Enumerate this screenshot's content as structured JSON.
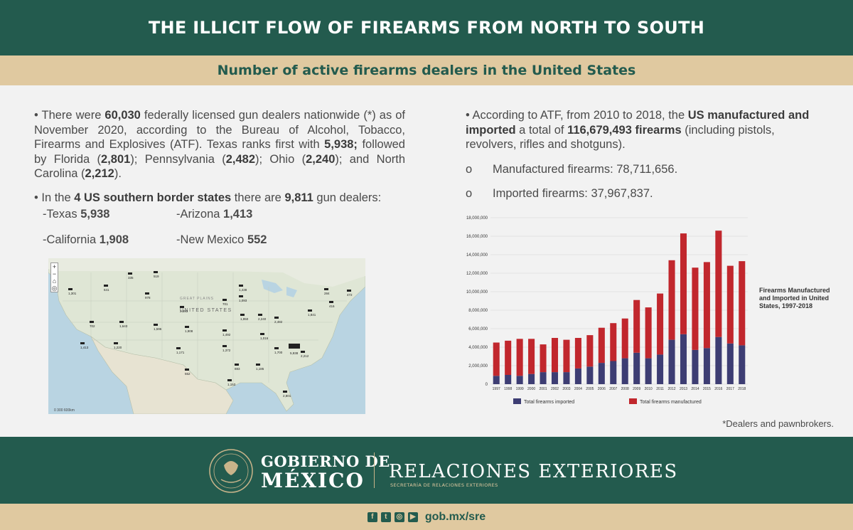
{
  "header": {
    "title": "THE ILLICIT FLOW OF FIREARMS FROM NORTH TO SOUTH",
    "subtitle": "Number of active firearms dealers in the United States"
  },
  "left": {
    "para1_a": "• There were ",
    "para1_b": "60,030",
    "para1_c": " federally licensed gun dealers nationwide (*) as of November 2020, according to the Bureau of Alcohol, Tobacco, Firearms and Explosives (ATF). Texas ranks first with ",
    "para1_d": "5,938;",
    "para1_e": " followed by Florida (",
    "para1_f": "2,801",
    "para1_g": "); Pennsylvania (",
    "para1_h": "2,482",
    "para1_i": "); Ohio (",
    "para1_j": "2,240",
    "para1_k": "); and North Carolina (",
    "para1_l": "2,212",
    "para1_m": ").",
    "para2_a": "• In the ",
    "para2_b": "4 US southern border states",
    "para2_c": " there are ",
    "para2_d": "9,811",
    "para2_e": " gun dealers:",
    "states": [
      {
        "name": "-Texas ",
        "value": "5,938"
      },
      {
        "name": "-Arizona ",
        "value": "1,413"
      },
      {
        "name": "-California ",
        "value": "1,908"
      },
      {
        "name": "-New Mexico ",
        "value": "552"
      }
    ]
  },
  "map": {
    "labels": [
      "UNITED STATES",
      "GREAT PLAINS"
    ],
    "counts": [
      "1,301",
      "641",
      "519",
      "335",
      "978",
      "1,438",
      "1,093",
      "284",
      "472",
      "416",
      "702",
      "1,643",
      "1,596",
      "701",
      "2,893",
      "1,492",
      "1,950",
      "2,240",
      "2,482",
      "1,841",
      "1,908",
      "1,413",
      "1,220",
      "1,171",
      "1,372",
      "1,016",
      "1,700",
      "5,938",
      "552",
      "883",
      "1,185",
      "2,212",
      "1,153",
      "2,801"
    ],
    "scale": "0   300   600km"
  },
  "right": {
    "para1_a": "• According to ATF, from 2010 to 2018, the ",
    "para1_b": "US manufactured and imported",
    "para1_c": " a total of ",
    "para1_d": "116,679,493 firearms",
    "para1_e": " (including pistols, revolvers, rifles and shotguns).",
    "bullet_marker": "o",
    "bullet1": "Manufactured firearms: 78,711,656.",
    "bullet2": "Imported firearms: 37,967,837."
  },
  "chart_data": {
    "type": "bar",
    "stacked": true,
    "title": "Firearms Manufactured and Imported in United States, 1997-2018",
    "categories": [
      "1997",
      "1998",
      "1999",
      "2000",
      "2001",
      "2002",
      "2003",
      "2004",
      "2005",
      "2006",
      "2007",
      "2008",
      "2009",
      "2010",
      "2011",
      "2012",
      "2013",
      "2014",
      "2015",
      "2016",
      "2017",
      "2018"
    ],
    "series": [
      {
        "name": "Total firearms imported",
        "color": "#3d3d73",
        "values": [
          900000,
          1000000,
          900000,
          1100000,
          1300000,
          1300000,
          1300000,
          1700000,
          1900000,
          2300000,
          2500000,
          2800000,
          3400000,
          2800000,
          3200000,
          4800000,
          5400000,
          3700000,
          3900000,
          5100000,
          4400000,
          4200000
        ]
      },
      {
        "name": "Total firearms manufactured",
        "color": "#c1272d",
        "values": [
          3600000,
          3700000,
          4000000,
          3800000,
          3000000,
          3700000,
          3500000,
          3300000,
          3400000,
          3800000,
          4100000,
          4300000,
          5700000,
          5500000,
          6600000,
          8600000,
          10900000,
          8900000,
          9300000,
          11500000,
          8400000,
          9100000
        ]
      }
    ],
    "yticks": [
      "0",
      "2,000,000",
      "4,000,000",
      "6,000,000",
      "8,000,000",
      "10,000,000",
      "12,000,000",
      "14,000,000",
      "16,000,000",
      "18,000,000"
    ],
    "ylim": [
      0,
      18000000
    ],
    "legend_position": "bottom"
  },
  "footnote": "*Dealers and pawnbrokers.",
  "footer": {
    "gob_line1": "GOBIERNO DE",
    "gob_line2": "MÉXICO",
    "rel": "RELACIONES EXTERIORES",
    "sec": "SECRETARÍA DE RELACIONES EXTERIORES",
    "url": "gob.mx/sre",
    "social_icons": [
      "facebook-icon",
      "twitter-icon",
      "instagram-icon",
      "youtube-icon"
    ]
  }
}
